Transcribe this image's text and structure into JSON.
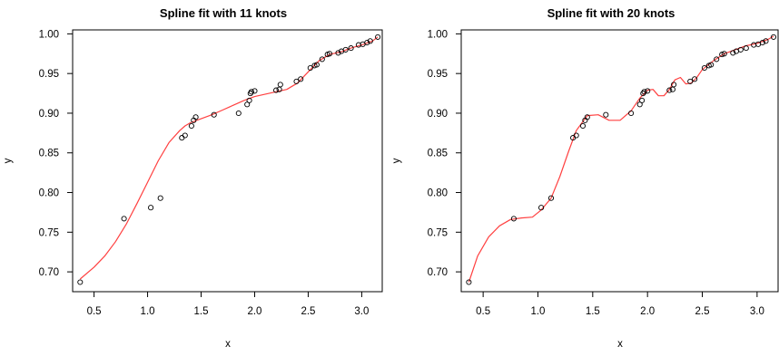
{
  "chart_data": [
    {
      "type": "scatter",
      "title": "Spline fit with 11 knots",
      "xlabel": "x",
      "ylabel": "y",
      "xlim": [
        0.3,
        3.2
      ],
      "ylim": [
        0.675,
        1.005
      ],
      "x_ticks": [
        "0.5",
        "1.0",
        "1.5",
        "2.0",
        "2.5",
        "3.0"
      ],
      "y_ticks": [
        "0.70",
        "0.75",
        "0.80",
        "0.85",
        "0.90",
        "0.95",
        "1.00"
      ],
      "grid": false,
      "point_color": "#000000",
      "fit_color": "#ff4040",
      "series": [
        {
          "type": "scatter",
          "x": [
            0.37,
            0.78,
            1.03,
            1.12,
            1.32,
            1.35,
            1.41,
            1.43,
            1.45,
            1.62,
            1.85,
            1.93,
            1.95,
            1.96,
            1.97,
            2.0,
            2.2,
            2.23,
            2.24,
            2.39,
            2.43,
            2.52,
            2.56,
            2.58,
            2.63,
            2.68,
            2.7,
            2.78,
            2.81,
            2.85,
            2.9,
            2.97,
            3.01,
            3.05,
            3.08,
            3.15
          ],
          "y": [
            0.687,
            0.767,
            0.781,
            0.793,
            0.869,
            0.872,
            0.884,
            0.891,
            0.895,
            0.898,
            0.9,
            0.911,
            0.916,
            0.925,
            0.927,
            0.928,
            0.929,
            0.93,
            0.936,
            0.94,
            0.943,
            0.957,
            0.96,
            0.961,
            0.968,
            0.974,
            0.975,
            0.976,
            0.978,
            0.98,
            0.982,
            0.986,
            0.987,
            0.989,
            0.991,
            0.996
          ]
        },
        {
          "type": "line",
          "x": [
            0.37,
            0.5,
            0.6,
            0.7,
            0.8,
            0.9,
            1.0,
            1.1,
            1.2,
            1.3,
            1.35,
            1.4,
            1.5,
            1.6,
            1.7,
            1.8,
            1.9,
            2.0,
            2.1,
            2.2,
            2.3,
            2.4,
            2.5,
            2.6,
            2.7,
            2.8,
            2.9,
            3.0,
            3.1,
            3.15
          ],
          "y": [
            0.691,
            0.706,
            0.72,
            0.738,
            0.76,
            0.786,
            0.813,
            0.84,
            0.863,
            0.878,
            0.884,
            0.888,
            0.893,
            0.898,
            0.904,
            0.91,
            0.916,
            0.921,
            0.924,
            0.927,
            0.93,
            0.938,
            0.952,
            0.966,
            0.974,
            0.977,
            0.982,
            0.986,
            0.991,
            0.996
          ]
        }
      ]
    },
    {
      "type": "scatter",
      "title": "Spline fit with 20 knots",
      "xlabel": "x",
      "ylabel": "y",
      "xlim": [
        0.3,
        3.2
      ],
      "ylim": [
        0.675,
        1.005
      ],
      "x_ticks": [
        "0.5",
        "1.0",
        "1.5",
        "2.0",
        "2.5",
        "3.0"
      ],
      "y_ticks": [
        "0.70",
        "0.75",
        "0.80",
        "0.85",
        "0.90",
        "0.95",
        "1.00"
      ],
      "grid": false,
      "point_color": "#000000",
      "fit_color": "#ff4040",
      "series": [
        {
          "type": "scatter",
          "x": [
            0.37,
            0.78,
            1.03,
            1.12,
            1.32,
            1.35,
            1.41,
            1.43,
            1.45,
            1.62,
            1.85,
            1.93,
            1.95,
            1.96,
            1.97,
            2.0,
            2.2,
            2.23,
            2.24,
            2.39,
            2.43,
            2.52,
            2.56,
            2.58,
            2.63,
            2.68,
            2.7,
            2.78,
            2.81,
            2.85,
            2.9,
            2.97,
            3.01,
            3.05,
            3.08,
            3.15
          ],
          "y": [
            0.687,
            0.767,
            0.781,
            0.793,
            0.869,
            0.872,
            0.884,
            0.891,
            0.895,
            0.898,
            0.9,
            0.911,
            0.916,
            0.925,
            0.927,
            0.928,
            0.929,
            0.93,
            0.936,
            0.94,
            0.943,
            0.957,
            0.96,
            0.961,
            0.968,
            0.974,
            0.975,
            0.976,
            0.978,
            0.98,
            0.982,
            0.986,
            0.987,
            0.989,
            0.991,
            0.996
          ]
        },
        {
          "type": "line",
          "x": [
            0.37,
            0.45,
            0.55,
            0.65,
            0.75,
            0.85,
            0.95,
            1.03,
            1.12,
            1.2,
            1.28,
            1.35,
            1.45,
            1.55,
            1.65,
            1.75,
            1.85,
            1.93,
            2.0,
            2.05,
            2.1,
            2.15,
            2.2,
            2.25,
            2.3,
            2.35,
            2.4,
            2.45,
            2.5,
            2.6,
            2.7,
            2.8,
            2.9,
            3.0,
            3.1,
            3.15
          ],
          "y": [
            0.687,
            0.72,
            0.744,
            0.758,
            0.766,
            0.768,
            0.769,
            0.778,
            0.793,
            0.82,
            0.852,
            0.878,
            0.897,
            0.898,
            0.891,
            0.891,
            0.903,
            0.919,
            0.929,
            0.93,
            0.922,
            0.922,
            0.93,
            0.942,
            0.945,
            0.937,
            0.938,
            0.945,
            0.955,
            0.966,
            0.975,
            0.98,
            0.985,
            0.988,
            0.993,
            0.997
          ]
        }
      ]
    }
  ]
}
